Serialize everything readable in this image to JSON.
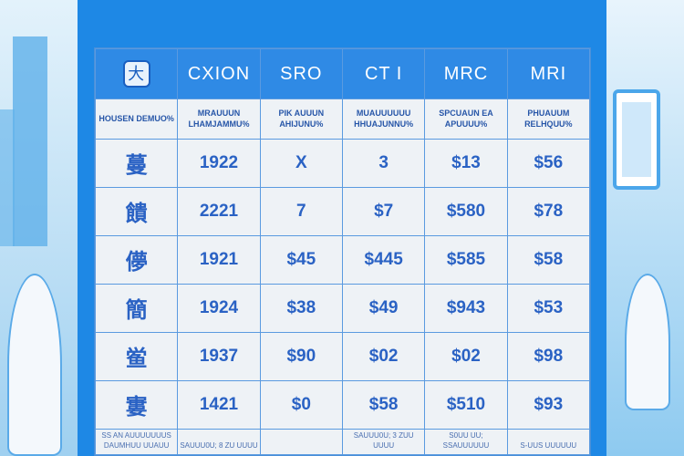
{
  "header": {
    "logo": "大",
    "columns": [
      "CXION",
      "SRO",
      "CT I",
      "MRC",
      "MRI"
    ]
  },
  "subheader": [
    "HOUSEN DEMUO%",
    "MRAUUUN LHAMJAMMU%",
    "PIK AUUUN AHIJUNU%",
    "MUAUUUUUU HHUAJUNNU%",
    "SPCUAUN EA APUUUU%",
    "PHUAUUM RELHQUU%"
  ],
  "rows": [
    [
      "蔓",
      "1922",
      "X",
      "3",
      "$13",
      "$56"
    ],
    [
      "饋",
      "2221",
      "7",
      "$7",
      "$580",
      "$78"
    ],
    [
      "儚",
      "1921",
      "$45",
      "$445",
      "$585",
      "$58"
    ],
    [
      "簡",
      "1924",
      "$38",
      "$49",
      "$943",
      "$53"
    ],
    [
      "鲎",
      "1937",
      "$90",
      "$02",
      "$02",
      "$98"
    ],
    [
      "寠",
      "1421",
      "$0",
      "$58",
      "$510",
      "$93"
    ]
  ],
  "footer": [
    "SS AN AUUUUUUUS DAUMHUU UUAUU",
    "SAUUU0U; 8 ZU UUUU",
    "",
    "SAUUU0U; 3 ZUU UUUU",
    "S0UU UU; SSAUUUUUU",
    "S-UUS UUUUUU"
  ],
  "colors": {
    "panel": "#1e88e5",
    "header": "#2f8ae5",
    "text": "#2a62c4"
  }
}
